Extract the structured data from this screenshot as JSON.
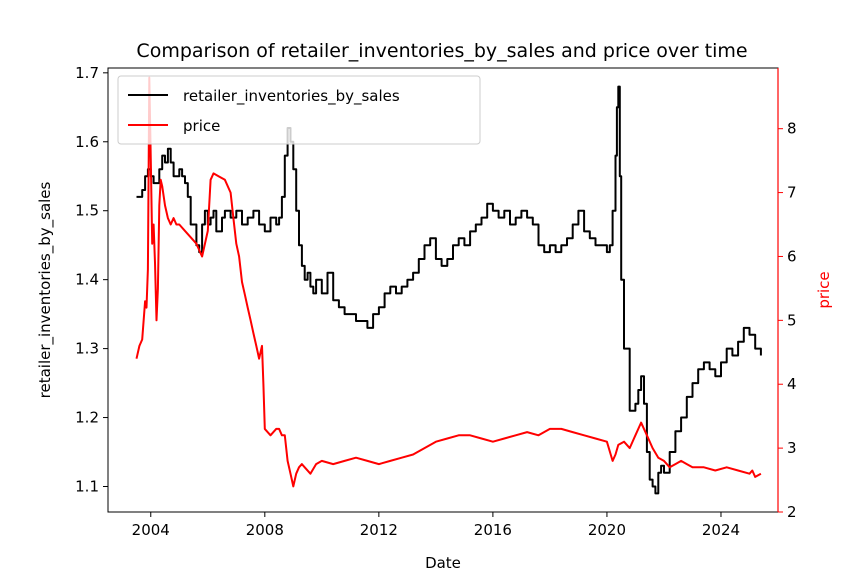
{
  "chart_data": {
    "type": "line",
    "title": "Comparison of retailer_inventories_by_sales and price over time",
    "xlabel": "Date",
    "ylabel_left": "retailer_inventories_by_sales",
    "ylabel_right": "price",
    "xlim": [
      2002.5,
      2026.0
    ],
    "ylim_left": [
      1.063,
      1.707
    ],
    "ylim_right": [
      2.0,
      8.95
    ],
    "x_ticks": [
      2004,
      2008,
      2012,
      2016,
      2020,
      2024
    ],
    "x_tick_labels": [
      "2004",
      "2008",
      "2012",
      "2016",
      "2020",
      "2024"
    ],
    "y_left_ticks": [
      1.1,
      1.2,
      1.3,
      1.4,
      1.5,
      1.6,
      1.7
    ],
    "y_left_tick_labels": [
      "1.1",
      "1.2",
      "1.3",
      "1.4",
      "1.5",
      "1.6",
      "1.7"
    ],
    "y_right_ticks": [
      2,
      3,
      4,
      5,
      6,
      7,
      8
    ],
    "y_right_tick_labels": [
      "2",
      "3",
      "4",
      "5",
      "6",
      "7",
      "8"
    ],
    "grid": false,
    "legend_position": "top-left",
    "series": [
      {
        "name": "retailer_inventories_by_sales",
        "axis": "left",
        "color": "#000000",
        "x": [
          2003.5,
          2003.7,
          2003.8,
          2003.9,
          2004.0,
          2004.1,
          2004.3,
          2004.4,
          2004.5,
          2004.6,
          2004.7,
          2004.8,
          2004.9,
          2005.0,
          2005.1,
          2005.2,
          2005.3,
          2005.4,
          2005.6,
          2005.7,
          2005.8,
          2005.9,
          2006.0,
          2006.1,
          2006.2,
          2006.3,
          2006.5,
          2006.6,
          2006.8,
          2007.0,
          2007.2,
          2007.4,
          2007.6,
          2007.8,
          2008.0,
          2008.2,
          2008.4,
          2008.5,
          2008.6,
          2008.7,
          2008.8,
          2008.9,
          2009.0,
          2009.1,
          2009.2,
          2009.3,
          2009.4,
          2009.5,
          2009.6,
          2009.7,
          2009.8,
          2010.0,
          2010.2,
          2010.4,
          2010.6,
          2010.8,
          2011.0,
          2011.2,
          2011.4,
          2011.6,
          2011.8,
          2012.0,
          2012.2,
          2012.4,
          2012.6,
          2012.8,
          2013.0,
          2013.2,
          2013.4,
          2013.6,
          2013.8,
          2014.0,
          2014.2,
          2014.4,
          2014.6,
          2014.8,
          2015.0,
          2015.2,
          2015.4,
          2015.6,
          2015.8,
          2016.0,
          2016.2,
          2016.4,
          2016.6,
          2016.8,
          2017.0,
          2017.2,
          2017.4,
          2017.6,
          2017.8,
          2018.0,
          2018.2,
          2018.4,
          2018.6,
          2018.8,
          2019.0,
          2019.2,
          2019.4,
          2019.6,
          2019.8,
          2020.0,
          2020.1,
          2020.2,
          2020.3,
          2020.35,
          2020.4,
          2020.45,
          2020.5,
          2020.6,
          2020.8,
          2021.0,
          2021.1,
          2021.2,
          2021.3,
          2021.4,
          2021.5,
          2021.6,
          2021.7,
          2021.8,
          2021.9,
          2022.0,
          2022.2,
          2022.4,
          2022.6,
          2022.8,
          2023.0,
          2023.2,
          2023.4,
          2023.6,
          2023.8,
          2024.0,
          2024.2,
          2024.4,
          2024.6,
          2024.8,
          2025.0,
          2025.2,
          2025.4
        ],
        "values": [
          1.52,
          1.53,
          1.55,
          1.56,
          1.55,
          1.54,
          1.56,
          1.58,
          1.57,
          1.59,
          1.57,
          1.55,
          1.55,
          1.56,
          1.55,
          1.54,
          1.52,
          1.48,
          1.45,
          1.44,
          1.48,
          1.5,
          1.48,
          1.49,
          1.5,
          1.47,
          1.49,
          1.5,
          1.49,
          1.5,
          1.48,
          1.49,
          1.5,
          1.48,
          1.47,
          1.49,
          1.48,
          1.49,
          1.52,
          1.58,
          1.62,
          1.6,
          1.56,
          1.5,
          1.45,
          1.42,
          1.4,
          1.41,
          1.39,
          1.38,
          1.4,
          1.38,
          1.41,
          1.37,
          1.36,
          1.35,
          1.35,
          1.34,
          1.34,
          1.33,
          1.35,
          1.36,
          1.38,
          1.39,
          1.38,
          1.39,
          1.4,
          1.41,
          1.43,
          1.45,
          1.46,
          1.43,
          1.42,
          1.43,
          1.45,
          1.46,
          1.45,
          1.47,
          1.48,
          1.49,
          1.51,
          1.5,
          1.49,
          1.5,
          1.48,
          1.49,
          1.5,
          1.49,
          1.48,
          1.45,
          1.44,
          1.45,
          1.44,
          1.45,
          1.46,
          1.48,
          1.5,
          1.47,
          1.46,
          1.45,
          1.45,
          1.44,
          1.45,
          1.5,
          1.58,
          1.65,
          1.68,
          1.55,
          1.4,
          1.3,
          1.21,
          1.22,
          1.24,
          1.26,
          1.22,
          1.15,
          1.11,
          1.1,
          1.09,
          1.12,
          1.13,
          1.12,
          1.15,
          1.18,
          1.2,
          1.23,
          1.25,
          1.27,
          1.28,
          1.27,
          1.26,
          1.28,
          1.3,
          1.29,
          1.31,
          1.33,
          1.32,
          1.3,
          1.29
        ]
      },
      {
        "name": "price",
        "axis": "right",
        "color": "#ff0000",
        "x": [
          2003.5,
          2003.6,
          2003.7,
          2003.8,
          2003.85,
          2003.9,
          2003.95,
          2004.0,
          2004.05,
          2004.1,
          2004.15,
          2004.2,
          2004.25,
          2004.3,
          2004.35,
          2004.4,
          2004.5,
          2004.6,
          2004.7,
          2004.8,
          2004.9,
          2005.0,
          2005.2,
          2005.4,
          2005.6,
          2005.8,
          2006.0,
          2006.1,
          2006.2,
          2006.4,
          2006.6,
          2006.8,
          2006.9,
          2007.0,
          2007.1,
          2007.2,
          2007.3,
          2007.4,
          2007.5,
          2007.6,
          2007.7,
          2007.8,
          2007.9,
          2007.95,
          2008.0,
          2008.2,
          2008.4,
          2008.5,
          2008.6,
          2008.7,
          2008.8,
          2008.9,
          2009.0,
          2009.1,
          2009.2,
          2009.3,
          2009.4,
          2009.6,
          2009.8,
          2010.0,
          2010.4,
          2010.8,
          2011.2,
          2011.6,
          2012.0,
          2012.4,
          2012.8,
          2013.2,
          2013.6,
          2014.0,
          2014.4,
          2014.8,
          2015.2,
          2015.6,
          2016.0,
          2016.4,
          2016.8,
          2017.2,
          2017.6,
          2018.0,
          2018.4,
          2018.8,
          2019.2,
          2019.6,
          2020.0,
          2020.2,
          2020.3,
          2020.4,
          2020.6,
          2020.8,
          2021.0,
          2021.2,
          2021.4,
          2021.6,
          2021.8,
          2022.0,
          2022.2,
          2022.4,
          2022.6,
          2022.8,
          2023.0,
          2023.4,
          2023.8,
          2024.2,
          2024.6,
          2025.0,
          2025.1,
          2025.2,
          2025.4
        ],
        "values": [
          4.4,
          4.6,
          4.7,
          5.3,
          5.2,
          5.8,
          8.8,
          7.5,
          6.2,
          6.5,
          5.9,
          5.0,
          5.5,
          6.8,
          7.2,
          7.1,
          6.8,
          6.6,
          6.5,
          6.6,
          6.5,
          6.5,
          6.4,
          6.3,
          6.2,
          6.0,
          6.4,
          7.2,
          7.3,
          7.25,
          7.2,
          7.0,
          6.6,
          6.2,
          6.0,
          5.6,
          5.4,
          5.2,
          5.0,
          4.8,
          4.6,
          4.4,
          4.6,
          4.0,
          3.3,
          3.2,
          3.3,
          3.3,
          3.2,
          3.2,
          2.8,
          2.6,
          2.4,
          2.6,
          2.7,
          2.75,
          2.7,
          2.6,
          2.75,
          2.8,
          2.75,
          2.8,
          2.85,
          2.8,
          2.75,
          2.8,
          2.85,
          2.9,
          3.0,
          3.1,
          3.15,
          3.2,
          3.2,
          3.15,
          3.1,
          3.15,
          3.2,
          3.25,
          3.2,
          3.3,
          3.3,
          3.25,
          3.2,
          3.15,
          3.1,
          2.8,
          2.9,
          3.05,
          3.1,
          3.0,
          3.2,
          3.4,
          3.2,
          3.0,
          2.85,
          2.8,
          2.7,
          2.75,
          2.8,
          2.75,
          2.7,
          2.7,
          2.65,
          2.7,
          2.65,
          2.6,
          2.65,
          2.55,
          2.6
        ]
      }
    ]
  }
}
